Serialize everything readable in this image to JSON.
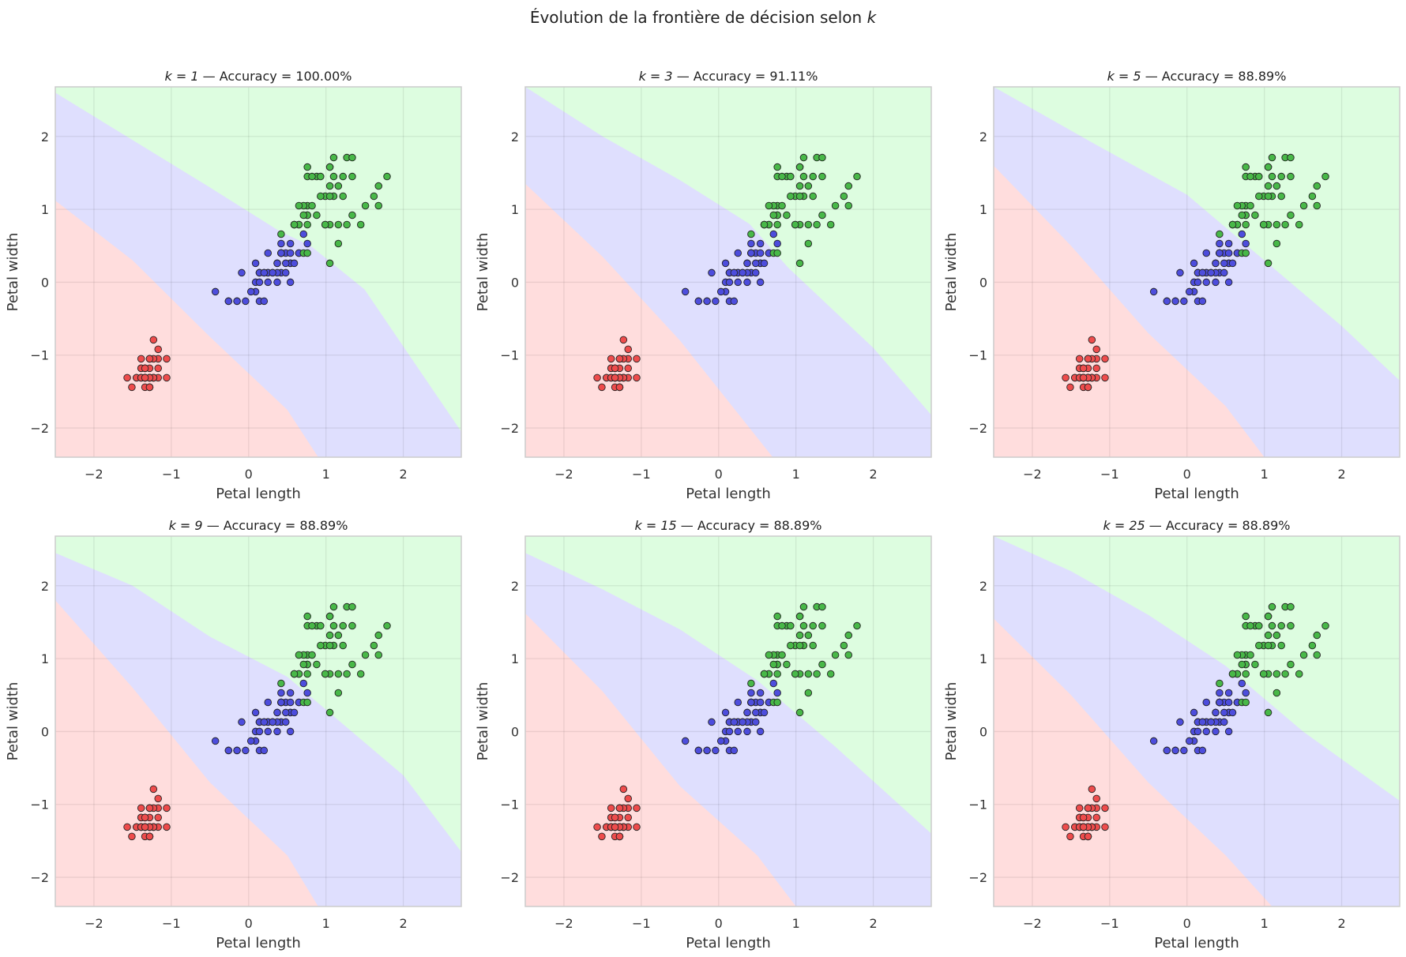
{
  "figure": {
    "title_prefix": "Évolution de la frontière de décision selon ",
    "title_var": "k"
  },
  "chart_data": [
    {
      "type": "scatter",
      "k_label": "k = 1",
      "accuracy_label": " — Accuracy = 100.00%",
      "k": 1,
      "accuracy": 100.0,
      "xlabel": "Petal length",
      "ylabel": "Petal width",
      "xlim": [
        -2.5,
        2.75
      ],
      "ylim": [
        -2.4,
        2.68
      ],
      "boundary_red_blue": [
        [
          -2.5,
          1.12
        ],
        [
          -1.5,
          0.3
        ],
        [
          -0.5,
          -0.75
        ],
        [
          0.5,
          -1.75
        ],
        [
          0.9,
          -2.4
        ]
      ],
      "boundary_blue_green": [
        [
          -2.5,
          2.6
        ],
        [
          -1.5,
          1.95
        ],
        [
          -0.5,
          1.3
        ],
        [
          0.4,
          0.7
        ],
        [
          0.8,
          0.5
        ],
        [
          1.5,
          -0.1
        ],
        [
          2.75,
          -2.05
        ]
      ]
    },
    {
      "type": "scatter",
      "k_label": "k = 3",
      "accuracy_label": " — Accuracy = 91.11%",
      "k": 3,
      "accuracy": 91.11,
      "xlabel": "Petal length",
      "ylabel": "Petal width",
      "xlim": [
        -2.5,
        2.75
      ],
      "ylim": [
        -2.4,
        2.68
      ],
      "boundary_red_blue": [
        [
          -2.5,
          1.35
        ],
        [
          -1.5,
          0.35
        ],
        [
          -0.5,
          -0.8
        ],
        [
          0.7,
          -2.4
        ]
      ],
      "boundary_blue_green": [
        [
          -2.5,
          2.68
        ],
        [
          -1.5,
          2.0
        ],
        [
          -0.5,
          1.4
        ],
        [
          0.4,
          0.8
        ],
        [
          0.9,
          0.2
        ],
        [
          2.0,
          -0.9
        ],
        [
          2.75,
          -1.82
        ]
      ]
    },
    {
      "type": "scatter",
      "k_label": "k = 5",
      "accuracy_label": " — Accuracy = 88.89%",
      "k": 5,
      "accuracy": 88.89,
      "xlabel": "Petal length",
      "ylabel": "Petal width",
      "xlim": [
        -2.5,
        2.75
      ],
      "ylim": [
        -2.4,
        2.68
      ],
      "boundary_red_blue": [
        [
          -2.5,
          1.6
        ],
        [
          -1.5,
          0.5
        ],
        [
          -0.5,
          -0.7
        ],
        [
          0.5,
          -1.7
        ],
        [
          1.0,
          -2.4
        ]
      ],
      "boundary_blue_green": [
        [
          -2.5,
          2.68
        ],
        [
          -1.2,
          1.9
        ],
        [
          0.0,
          1.2
        ],
        [
          1.0,
          0.3
        ],
        [
          2.0,
          -0.6
        ],
        [
          2.75,
          -1.35
        ]
      ]
    },
    {
      "type": "scatter",
      "k_label": "k = 9",
      "accuracy_label": " — Accuracy = 88.89%",
      "k": 9,
      "accuracy": 88.89,
      "xlabel": "Petal length",
      "ylabel": "Petal width",
      "xlim": [
        -2.5,
        2.75
      ],
      "ylim": [
        -2.4,
        2.68
      ],
      "boundary_red_blue": [
        [
          -2.5,
          1.8
        ],
        [
          -1.5,
          0.6
        ],
        [
          -0.5,
          -0.7
        ],
        [
          0.5,
          -1.7
        ],
        [
          0.9,
          -2.4
        ]
      ],
      "boundary_blue_green": [
        [
          -2.5,
          2.45
        ],
        [
          -1.5,
          2.0
        ],
        [
          -0.5,
          1.3
        ],
        [
          0.5,
          0.75
        ],
        [
          1.0,
          0.3
        ],
        [
          2.0,
          -0.6
        ],
        [
          2.75,
          -1.65
        ]
      ]
    },
    {
      "type": "scatter",
      "k_label": "k = 15",
      "accuracy_label": " — Accuracy = 88.89%",
      "k": 15,
      "accuracy": 88.89,
      "xlabel": "Petal length",
      "ylabel": "Petal width",
      "xlim": [
        -2.5,
        2.75
      ],
      "ylim": [
        -2.4,
        2.68
      ],
      "boundary_red_blue": [
        [
          -2.5,
          1.62
        ],
        [
          -1.5,
          0.55
        ],
        [
          -0.5,
          -0.75
        ],
        [
          0.5,
          -1.7
        ],
        [
          1.0,
          -2.4
        ]
      ],
      "boundary_blue_green": [
        [
          -2.5,
          2.45
        ],
        [
          -1.5,
          1.95
        ],
        [
          -0.5,
          1.4
        ],
        [
          0.5,
          0.7
        ],
        [
          1.5,
          -0.2
        ],
        [
          2.75,
          -1.4
        ]
      ]
    },
    {
      "type": "scatter",
      "k_label": "k = 25",
      "accuracy_label": " — Accuracy = 88.89%",
      "k": 25,
      "accuracy": 88.89,
      "xlabel": "Petal length",
      "ylabel": "Petal width",
      "xlim": [
        -2.5,
        2.75
      ],
      "ylim": [
        -2.4,
        2.68
      ],
      "boundary_red_blue": [
        [
          -2.5,
          1.55
        ],
        [
          -1.5,
          0.5
        ],
        [
          -0.5,
          -0.7
        ],
        [
          0.5,
          -1.7
        ],
        [
          1.1,
          -2.4
        ]
      ],
      "boundary_blue_green": [
        [
          -2.5,
          2.68
        ],
        [
          -1.5,
          2.2
        ],
        [
          -0.5,
          1.6
        ],
        [
          0.5,
          0.9
        ],
        [
          1.5,
          0.0
        ],
        [
          2.75,
          -0.95
        ]
      ]
    }
  ],
  "ticks": {
    "x": [
      -2,
      -1,
      0,
      1,
      2
    ],
    "y": [
      -2,
      -1,
      0,
      1,
      2
    ],
    "x_labels": [
      "−2",
      "−1",
      "0",
      "1",
      "2"
    ],
    "y_labels": [
      "−2",
      "−1",
      "0",
      "1",
      "2"
    ]
  },
  "points": {
    "red": [
      [
        -1.34,
        -1.31
      ],
      [
        -1.34,
        -1.31
      ],
      [
        -1.39,
        -1.31
      ],
      [
        -1.28,
        -1.31
      ],
      [
        -1.34,
        -1.31
      ],
      [
        -1.17,
        -1.05
      ],
      [
        -1.34,
        -1.18
      ],
      [
        -1.28,
        -1.31
      ],
      [
        -1.34,
        -1.31
      ],
      [
        -1.28,
        -1.44
      ],
      [
        -1.28,
        -1.31
      ],
      [
        -1.23,
        -1.31
      ],
      [
        -1.34,
        -1.44
      ],
      [
        -1.51,
        -1.44
      ],
      [
        -1.45,
        -1.31
      ],
      [
        -1.28,
        -1.05
      ],
      [
        -1.39,
        -1.05
      ],
      [
        -1.34,
        -1.18
      ],
      [
        -1.17,
        -1.18
      ],
      [
        -1.28,
        -1.18
      ],
      [
        -1.17,
        -1.31
      ],
      [
        -1.28,
        -1.05
      ],
      [
        -1.57,
        -1.31
      ],
      [
        -1.17,
        -0.92
      ],
      [
        -1.06,
        -1.31
      ],
      [
        -1.23,
        -1.31
      ],
      [
        -1.23,
        -1.05
      ],
      [
        -1.28,
        -1.31
      ],
      [
        -1.34,
        -1.31
      ],
      [
        -1.23,
        -1.31
      ],
      [
        -1.23,
        -1.31
      ],
      [
        -1.28,
        -1.05
      ],
      [
        -1.28,
        -1.44
      ],
      [
        -1.34,
        -1.31
      ],
      [
        -1.28,
        -1.31
      ],
      [
        -1.45,
        -1.31
      ],
      [
        -1.39,
        -1.31
      ],
      [
        -1.28,
        -1.44
      ],
      [
        -1.39,
        -1.31
      ],
      [
        -1.28,
        -1.31
      ],
      [
        -1.39,
        -1.18
      ],
      [
        -1.39,
        -1.18
      ],
      [
        -1.39,
        -1.31
      ],
      [
        -1.23,
        -0.79
      ],
      [
        -1.06,
        -1.05
      ],
      [
        -1.34,
        -1.18
      ],
      [
        -1.23,
        -1.31
      ],
      [
        -1.34,
        -1.31
      ],
      [
        -1.28,
        -1.31
      ],
      [
        -1.34,
        -1.31
      ]
    ],
    "blue": [
      [
        0.54,
        0.26
      ],
      [
        0.42,
        0.4
      ],
      [
        0.65,
        0.4
      ],
      [
        0.14,
        0.13
      ],
      [
        0.48,
        0.4
      ],
      [
        0.42,
        0.13
      ],
      [
        0.54,
        0.53
      ],
      [
        -0.26,
        -0.26
      ],
      [
        0.48,
        0.13
      ],
      [
        0.09,
        0.26
      ],
      [
        -0.15,
        -0.26
      ],
      [
        0.25,
        0.4
      ],
      [
        0.14,
        -0.26
      ],
      [
        0.54,
        0.26
      ],
      [
        -0.09,
        0.13
      ],
      [
        0.37,
        0.26
      ],
      [
        0.42,
        0.4
      ],
      [
        0.2,
        -0.26
      ],
      [
        0.42,
        0.4
      ],
      [
        0.09,
        -0.13
      ],
      [
        0.59,
        0.79
      ],
      [
        0.14,
        0.13
      ],
      [
        0.65,
        0.4
      ],
      [
        0.54,
        0.0
      ],
      [
        0.31,
        0.13
      ],
      [
        0.37,
        0.26
      ],
      [
        0.59,
        0.26
      ],
      [
        0.71,
        0.66
      ],
      [
        0.42,
        0.4
      ],
      [
        -0.15,
        -0.26
      ],
      [
        0.03,
        -0.13
      ],
      [
        -0.04,
        -0.26
      ],
      [
        0.09,
        0.0
      ],
      [
        0.76,
        0.53
      ],
      [
        0.42,
        0.4
      ],
      [
        0.42,
        0.53
      ],
      [
        0.54,
        0.4
      ],
      [
        0.37,
        0.13
      ],
      [
        0.2,
        0.13
      ],
      [
        0.14,
        0.13
      ],
      [
        0.37,
        0.0
      ],
      [
        0.48,
        0.26
      ],
      [
        0.14,
        0.0
      ],
      [
        -0.26,
        -0.26
      ],
      [
        0.25,
        0.13
      ],
      [
        0.25,
        0.0
      ],
      [
        0.25,
        0.13
      ],
      [
        0.31,
        0.13
      ],
      [
        -0.43,
        -0.13
      ],
      [
        0.2,
        0.13
      ]
    ],
    "green": [
      [
        1.27,
        1.71
      ],
      [
        0.76,
        0.92
      ],
      [
        1.22,
        1.18
      ],
      [
        1.05,
        0.79
      ],
      [
        1.16,
        1.32
      ],
      [
        1.62,
        1.18
      ],
      [
        0.42,
        0.66
      ],
      [
        1.45,
        0.79
      ],
      [
        1.16,
        0.79
      ],
      [
        1.34,
        1.71
      ],
      [
        0.76,
        1.05
      ],
      [
        0.88,
        0.92
      ],
      [
        0.99,
        1.18
      ],
      [
        0.71,
        1.05
      ],
      [
        0.76,
        1.58
      ],
      [
        0.88,
        1.45
      ],
      [
        0.99,
        0.79
      ],
      [
        1.68,
        1.32
      ],
      [
        1.79,
        1.45
      ],
      [
        0.71,
        0.4
      ],
      [
        1.1,
        1.45
      ],
      [
        0.65,
        1.05
      ],
      [
        1.68,
        1.05
      ],
      [
        0.65,
        0.79
      ],
      [
        1.1,
        1.18
      ],
      [
        1.27,
        0.79
      ],
      [
        0.59,
        0.79
      ],
      [
        0.65,
        0.79
      ],
      [
        1.05,
        1.18
      ],
      [
        1.16,
        0.53
      ],
      [
        1.34,
        0.92
      ],
      [
        1.51,
        1.05
      ],
      [
        1.05,
        1.32
      ],
      [
        0.76,
        0.4
      ],
      [
        1.05,
        0.26
      ],
      [
        1.34,
        1.45
      ],
      [
        1.05,
        1.58
      ],
      [
        0.99,
        0.79
      ],
      [
        0.59,
        0.79
      ],
      [
        0.93,
        1.18
      ],
      [
        1.05,
        1.58
      ],
      [
        0.76,
        1.45
      ],
      [
        0.76,
        0.92
      ],
      [
        1.22,
        1.45
      ],
      [
        1.1,
        1.71
      ],
      [
        0.82,
        1.45
      ],
      [
        0.71,
        0.92
      ],
      [
        0.82,
        1.05
      ],
      [
        0.93,
        1.45
      ],
      [
        0.76,
        0.79
      ]
    ]
  },
  "colors": {
    "region_red": "#ffdddd",
    "region_blue": "#dfdffe",
    "region_green": "#ddfde0",
    "point_red": "#ee4c4c",
    "point_blue": "#4d4ddd",
    "point_green": "#48b848"
  }
}
